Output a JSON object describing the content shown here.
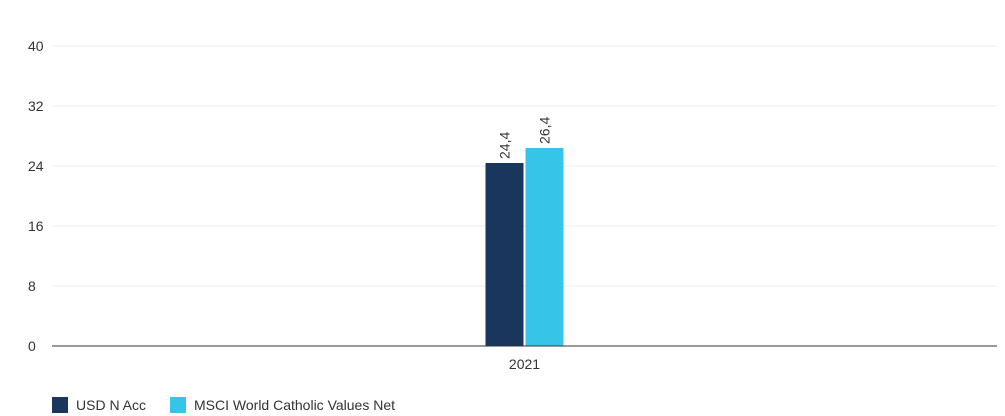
{
  "chart_data": {
    "type": "bar",
    "title": "",
    "xlabel": "",
    "ylabel": "",
    "categories": [
      "2021"
    ],
    "series": [
      {
        "name": "USD N Acc",
        "values": [
          24.4
        ],
        "labels": [
          "24,4"
        ],
        "color": "#1b365d"
      },
      {
        "name": "MSCI World Catholic Values Net",
        "values": [
          26.4
        ],
        "labels": [
          "26,4"
        ],
        "color": "#36c5e8"
      }
    ],
    "ylim": [
      0,
      40
    ],
    "yticks": [
      "0",
      "8",
      "16",
      "24",
      "32",
      "40"
    ],
    "grid": true,
    "legend_position": "bottom-left"
  }
}
